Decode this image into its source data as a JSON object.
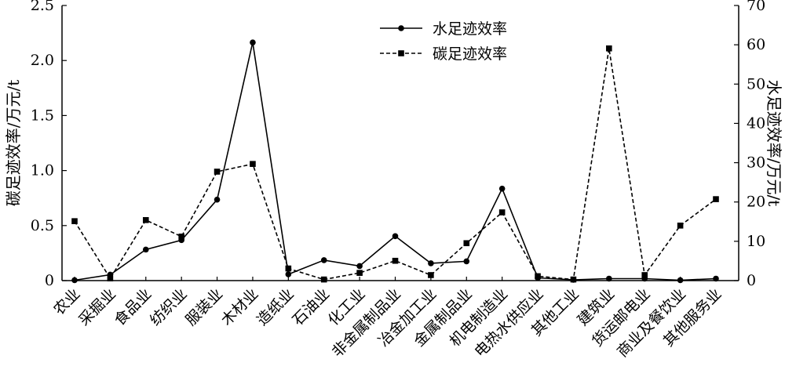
{
  "chart_data": {
    "type": "line",
    "categories": [
      "农业",
      "采掘业",
      "食品业",
      "纺织业",
      "服装业",
      "木材业",
      "造纸业",
      "石油业",
      "化工业",
      "非金属制品业",
      "冶金加工业",
      "金属制品业",
      "机电制造业",
      "电热水供应业",
      "其他工业",
      "建筑业",
      "货运邮电业",
      "商业及餐饮业",
      "其他服务业"
    ],
    "series": [
      {
        "name": "水足迹效率",
        "axis": "right",
        "marker": "circle",
        "line_style": "solid",
        "values": [
          0.1,
          1.5,
          7.9,
          10.3,
          20.6,
          60.6,
          1.6,
          5.2,
          3.7,
          11.3,
          4.4,
          4.9,
          23.4,
          0.7,
          0.2,
          0.5,
          0.5,
          0.1,
          0.5
        ]
      },
      {
        "name": "碳足迹效率",
        "axis": "left",
        "marker": "square",
        "line_style": "dashed",
        "values": [
          0.54,
          0.02,
          0.55,
          0.4,
          0.99,
          1.06,
          0.11,
          0.01,
          0.07,
          0.18,
          0.05,
          0.34,
          0.62,
          0.04,
          0.01,
          2.11,
          0.05,
          0.5,
          0.74
        ]
      }
    ],
    "left_axis": {
      "label": "碳足迹效率/万元/t",
      "ylim": [
        0,
        2.5
      ],
      "ticks": [
        "0",
        "0.5",
        "1.0",
        "1.5",
        "2.0",
        "2.5"
      ]
    },
    "right_axis": {
      "label": "水足迹效率/万元/t",
      "ylim": [
        0,
        70
      ],
      "ticks": [
        "0",
        "10",
        "20",
        "30",
        "40",
        "50",
        "60",
        "70"
      ]
    },
    "legend": {
      "position": "top-center"
    },
    "grid": false
  }
}
